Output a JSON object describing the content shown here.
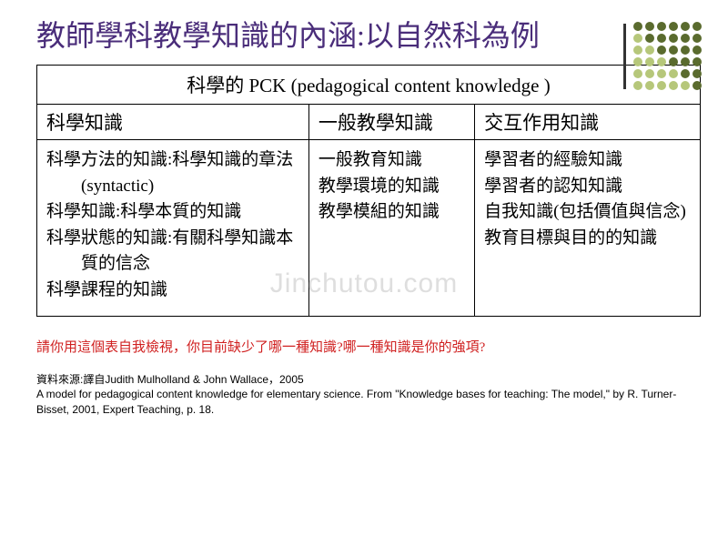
{
  "title": "教師學科教學知識的內涵:以自然科為例",
  "dots": {
    "dark": "#5a6b2e",
    "light": "#b6c77a",
    "pattern": [
      [
        "d",
        "d",
        "d",
        "d",
        "d",
        "d"
      ],
      [
        "l",
        "d",
        "d",
        "d",
        "d",
        "d"
      ],
      [
        "l",
        "l",
        "d",
        "d",
        "d",
        "d"
      ],
      [
        "l",
        "l",
        "l",
        "d",
        "d",
        "d"
      ],
      [
        "l",
        "l",
        "l",
        "l",
        "d",
        "d"
      ],
      [
        "l",
        "l",
        "l",
        "l",
        "l",
        "d"
      ]
    ]
  },
  "accent_line_color": "#333333",
  "table": {
    "header": "科學的 PCK (pedagogical content knowledge )",
    "columns": [
      "科學知識",
      "一般教學知識",
      "交互作用知識"
    ],
    "col1": [
      "科學方法的知識:科學知識的章法(syntactic)",
      "科學知識:科學本質的知識",
      "科學狀態的知識:有關科學知識本質的信念",
      "科學課程的知識"
    ],
    "col2": [
      "一般教育知識",
      "教學環境的知識",
      "教學模組的知識"
    ],
    "col3": [
      "學習者的經驗知識",
      "學習者的認知知識",
      "自我知識(包括價值與信念)",
      "教育目標與目的的知識"
    ]
  },
  "prompt": "請你用這個表自我檢視，你目前缺少了哪一種知識?哪一種知識是你的強項?",
  "source_line1": "資料來源:譯自Judith  Mulholland & John Wallace，2005",
  "source_line2": "A model for pedagogical content knowledge for elementary science. From \"Knowledge bases for teaching: The model,\" by R. Turner-Bisset, 2001, Expert Teaching, p. 18.",
  "watermark": "Jinchutou.com",
  "colors": {
    "title": "#4a2d7a",
    "prompt": "#d02020",
    "border": "#000000",
    "background": "#ffffff"
  }
}
